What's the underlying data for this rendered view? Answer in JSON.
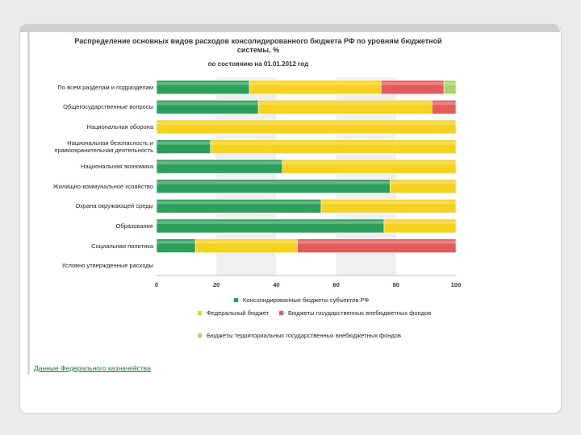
{
  "chart_data": {
    "type": "bar",
    "orientation": "horizontal",
    "stacked": true,
    "title": "Распределение основных видов расходов консолидированного бюджета РФ по уровням бюджетной системы, %",
    "subtitle": "по состоянию на 01.01.2012 год",
    "xlim": [
      0,
      100
    ],
    "xticks": [
      "0",
      "20",
      "40",
      "60",
      "80",
      "100"
    ],
    "categories": [
      "По всем разделам и подразделам",
      "Общегосударственные вопросы",
      "Национальная оборона",
      "Национальная безопасность и правоохранительная деятельность",
      "Национальная экономика",
      "Жилищно-коммунальное хозяйство",
      "Охрана окружающей среды",
      "Образование",
      "Социальная политика",
      "Условно утвержденные расходы"
    ],
    "series": [
      {
        "name": "Консолидированные бюджеты субъектов РФ",
        "color": "#2e9e5b",
        "values": [
          31,
          34,
          0,
          18,
          42,
          78,
          55,
          76,
          13,
          0
        ]
      },
      {
        "name": "Федеральный бюджет",
        "color": "#f4d21f",
        "values": [
          44,
          58,
          100,
          82,
          58,
          22,
          45,
          24,
          34,
          0
        ]
      },
      {
        "name": "Бюджеты государственных внебюджетных фондов",
        "color": "#e25c5c",
        "values": [
          21,
          8,
          0,
          0,
          0,
          0,
          0,
          0,
          53,
          0
        ]
      },
      {
        "name": "Бюджеты территориальных государственных внебюджетных фондов",
        "color": "#a9d46a",
        "values": [
          4,
          0,
          0,
          0,
          0,
          0,
          0,
          0,
          0,
          0
        ]
      }
    ],
    "legend_position": "bottom",
    "grid": "alternating vertical bands"
  },
  "source": {
    "label": "Данные Федерального казначейства"
  }
}
